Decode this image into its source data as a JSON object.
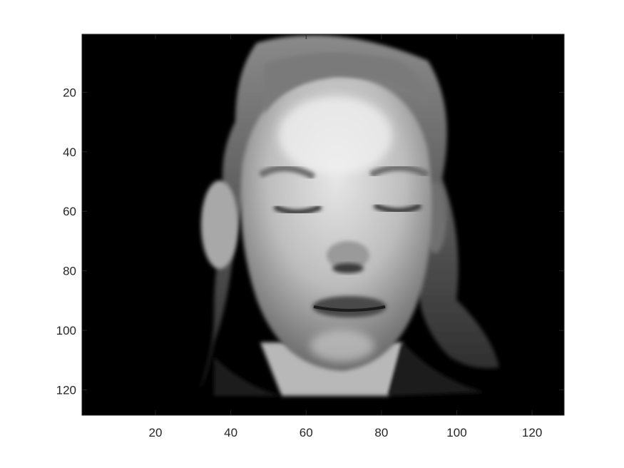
{
  "chart_data": {
    "type": "heatmap",
    "subject": "grayscale face image (eyes closed)",
    "colormap": "gray",
    "xlim": [
      0.5,
      128.5
    ],
    "ylim": [
      0.5,
      128.5
    ],
    "y_direction": "reversed",
    "x_ticks": [
      20,
      40,
      60,
      80,
      100,
      120
    ],
    "y_ticks": [
      20,
      40,
      60,
      80,
      100,
      120
    ],
    "x_tick_labels": [
      "20",
      "40",
      "60",
      "80",
      "100",
      "120"
    ],
    "y_tick_labels": [
      "20",
      "40",
      "60",
      "80",
      "100",
      "120"
    ],
    "grid": false,
    "colors": {
      "background": "#000000",
      "axis": "#262626"
    }
  }
}
